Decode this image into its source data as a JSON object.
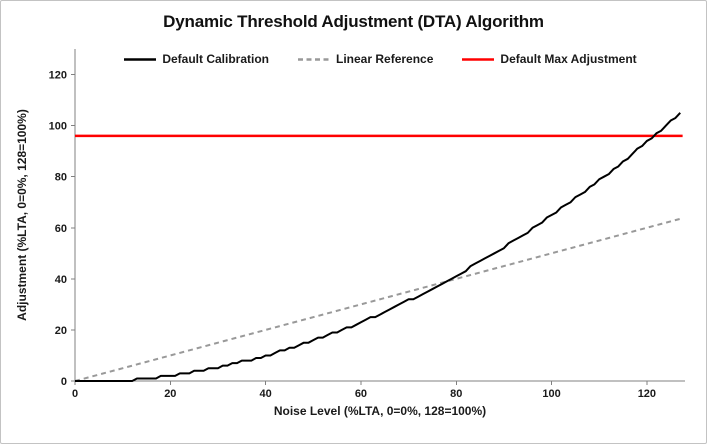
{
  "chart": {
    "title": "Dynamic Threshold Adjustment (DTA) Algorithm",
    "x_axis": {
      "label": "Noise Level (%LTA, 0=0%, 128=100%)",
      "ticks": [
        0,
        20,
        40,
        60,
        80,
        100,
        120
      ]
    },
    "y_axis": {
      "label": "Adjustment (%LTA, 0=0%, 128=100%)",
      "ticks": [
        0,
        20,
        40,
        60,
        80,
        100,
        120
      ]
    },
    "legend": [
      {
        "label": "Default Calibration",
        "color": "#000000",
        "style": "solid"
      },
      {
        "label": "Linear Reference",
        "color": "#999999",
        "style": "dashed"
      },
      {
        "label": "Default Max Adjustment",
        "color": "#ff0000",
        "style": "solid"
      }
    ],
    "colors": {
      "axis": "#808080",
      "text": "#1a1a1a",
      "background": "#ffffff",
      "border": "#c3c3c3"
    }
  },
  "chart_data": {
    "type": "line",
    "title": "Dynamic Threshold Adjustment (DTA) Algorithm",
    "xlabel": "Noise Level (%LTA, 0=0%, 128=100%)",
    "ylabel": "Adjustment (%LTA, 0=0%, 128=100%)",
    "xlim": [
      0,
      128
    ],
    "ylim": [
      0,
      130
    ],
    "grid": false,
    "legend_position": "top",
    "series": [
      {
        "name": "Default Calibration",
        "color": "#000000",
        "style": "solid",
        "width": 2,
        "x_start": 0,
        "x_step": 1,
        "y": [
          0,
          0,
          0,
          0,
          0,
          0,
          0,
          0,
          0,
          0,
          0,
          0,
          0,
          1,
          1,
          1,
          1,
          1,
          2,
          2,
          2,
          2,
          3,
          3,
          3,
          4,
          4,
          4,
          5,
          5,
          5,
          6,
          6,
          7,
          7,
          8,
          8,
          8,
          9,
          9,
          10,
          10,
          11,
          12,
          12,
          13,
          13,
          14,
          15,
          15,
          16,
          17,
          17,
          18,
          19,
          19,
          20,
          21,
          21,
          22,
          23,
          24,
          25,
          25,
          26,
          27,
          28,
          29,
          30,
          31,
          32,
          32,
          33,
          34,
          35,
          36,
          37,
          38,
          39,
          40,
          41,
          42,
          43,
          45,
          46,
          47,
          48,
          49,
          50,
          51,
          52,
          54,
          55,
          56,
          57,
          58,
          60,
          61,
          62,
          64,
          65,
          66,
          68,
          69,
          70,
          72,
          73,
          74,
          76,
          77,
          79,
          80,
          81,
          83,
          84,
          86,
          87,
          89,
          91,
          92,
          94,
          95,
          97,
          98,
          100,
          102,
          103,
          105
        ]
      },
      {
        "name": "Linear Reference",
        "color": "#999999",
        "style": "dashed",
        "width": 2,
        "x": [
          0,
          127
        ],
        "y": [
          0,
          63.5
        ]
      },
      {
        "name": "Default Max Adjustment",
        "color": "#ff0000",
        "style": "solid",
        "width": 2.5,
        "x": [
          0,
          127.5
        ],
        "y": [
          96,
          96
        ]
      }
    ]
  }
}
